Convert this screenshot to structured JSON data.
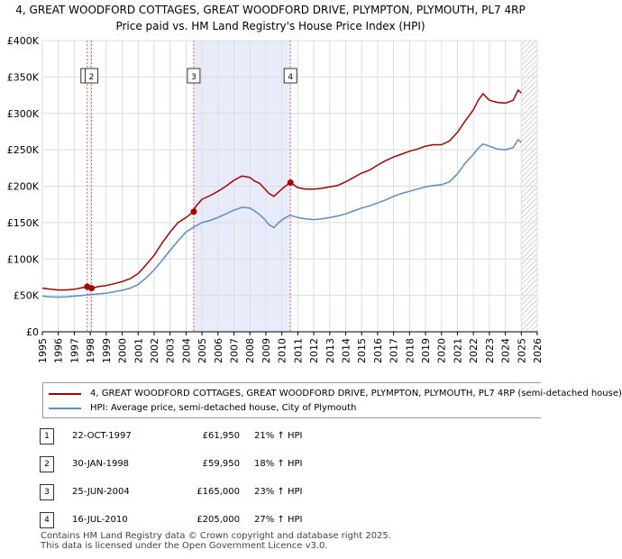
{
  "title_line1": "4, GREAT WOODFORD COTTAGES, GREAT WOODFORD DRIVE, PLYMPTON, PLYMOUTH, PL7 4RP",
  "title_line2": "Price paid vs. HM Land Registry's House Price Index (HPI)",
  "colors": {
    "property": "#aa0000",
    "hpi": "#5b8cc8",
    "shade": "#e8ecfa",
    "grid": "#dddddd",
    "vline": "#e06060",
    "hatch": "#aaaaaa"
  },
  "legend": {
    "property_label": "4, GREAT WOODFORD COTTAGES, GREAT WOODFORD DRIVE, PLYMPTON, PLYMOUTH, PL7 4RP (semi-detached house)",
    "hpi_label": "HPI: Average price, semi-detached house, City of Plymouth"
  },
  "sales": [
    {
      "num": "1",
      "date": "22-OCT-1997",
      "price": "£61,950",
      "hpi": "21% ↑ HPI"
    },
    {
      "num": "2",
      "date": "30-JAN-1998",
      "price": "£59,950",
      "hpi": "18% ↑ HPI"
    },
    {
      "num": "3",
      "date": "25-JUN-2004",
      "price": "£165,000",
      "hpi": "23% ↑ HPI"
    },
    {
      "num": "4",
      "date": "16-JUL-2010",
      "price": "£205,000",
      "hpi": "27% ↑ HPI"
    }
  ],
  "footer": {
    "line1": "Contains HM Land Registry data © Crown copyright and database right 2025.",
    "line2": "This data is licensed under the Open Government Licence v3.0."
  },
  "chart_data": {
    "type": "line",
    "title": "4, GREAT WOODFORD COTTAGES, GREAT WOODFORD DRIVE, PLYMPTON, PLYMOUTH, PL7 4RP — Price paid vs. HM Land Registry's House Price Index (HPI)",
    "xlim": [
      1995,
      2026
    ],
    "ylim": [
      0,
      400000
    ],
    "x_ticks": [
      "1995",
      "1996",
      "1997",
      "1998",
      "1999",
      "2000",
      "2001",
      "2002",
      "2003",
      "2004",
      "2005",
      "2006",
      "2007",
      "2008",
      "2009",
      "2010",
      "2011",
      "2012",
      "2013",
      "2014",
      "2015",
      "2016",
      "2017",
      "2018",
      "2019",
      "2020",
      "2021",
      "2022",
      "2023",
      "2024",
      "2025",
      "2026"
    ],
    "y_ticks": [
      {
        "value": 0,
        "label": "£0"
      },
      {
        "value": 50000,
        "label": "£50K"
      },
      {
        "value": 100000,
        "label": "£100K"
      },
      {
        "value": 150000,
        "label": "£150K"
      },
      {
        "value": 200000,
        "label": "£200K"
      },
      {
        "value": 250000,
        "label": "£250K"
      },
      {
        "value": 300000,
        "label": "£300K"
      },
      {
        "value": 350000,
        "label": "£350K"
      },
      {
        "value": 400000,
        "label": "£400K"
      }
    ],
    "shaded_range": [
      2004.48,
      2010.54
    ],
    "future_hatch_from": 2025.0,
    "markers": [
      {
        "label": "1",
        "x": 1997.81,
        "y": 61950
      },
      {
        "label": "2",
        "x": 1998.08,
        "y": 59950
      },
      {
        "label": "3",
        "x": 2004.48,
        "y": 165000
      },
      {
        "label": "4",
        "x": 2010.54,
        "y": 205000
      }
    ],
    "series": [
      {
        "name": "4, GREAT WOODFORD COTTAGES, GREAT WOODFORD DRIVE, PLYMPTON, PLYMOUTH, PL7 4RP (semi-detached house)",
        "color": "#aa0000",
        "x": [
          1995.0,
          1995.5,
          1996.0,
          1996.5,
          1997.0,
          1997.5,
          1997.81,
          1998.08,
          1998.5,
          1999.0,
          1999.5,
          2000.0,
          2000.5,
          2001.0,
          2001.5,
          2002.0,
          2002.5,
          2003.0,
          2003.5,
          2004.0,
          2004.48,
          2004.6,
          2005.0,
          2005.5,
          2006.0,
          2006.5,
          2007.0,
          2007.5,
          2008.0,
          2008.3,
          2008.6,
          2008.9,
          2009.2,
          2009.5,
          2009.8,
          2010.1,
          2010.54,
          2011.0,
          2011.5,
          2012.0,
          2012.5,
          2013.0,
          2013.5,
          2014.0,
          2014.5,
          2015.0,
          2015.5,
          2016.0,
          2016.5,
          2017.0,
          2017.5,
          2018.0,
          2018.5,
          2019.0,
          2019.5,
          2020.0,
          2020.5,
          2021.0,
          2021.5,
          2022.0,
          2022.3,
          2022.6,
          2023.0,
          2023.5,
          2024.0,
          2024.5,
          2024.8,
          2025.0
        ],
        "y": [
          60000,
          58500,
          57500,
          57500,
          58500,
          60500,
          61950,
          59950,
          62000,
          63500,
          66000,
          69000,
          73000,
          80000,
          92000,
          105000,
          122000,
          137000,
          150000,
          157000,
          165000,
          172000,
          182000,
          187000,
          193000,
          200000,
          208000,
          214000,
          212000,
          207000,
          204000,
          197000,
          190000,
          186000,
          192000,
          198000,
          205000,
          198000,
          196000,
          196000,
          197000,
          199000,
          201000,
          206000,
          212000,
          218000,
          222000,
          229000,
          235000,
          240000,
          244000,
          248000,
          251000,
          255000,
          257000,
          257000,
          262000,
          274000,
          290000,
          305000,
          318000,
          327000,
          318000,
          315000,
          314000,
          318000,
          332000,
          328000
        ]
      },
      {
        "name": "HPI: Average price, semi-detached house, City of Plymouth",
        "color": "#5b8cc8",
        "x": [
          1995.0,
          1995.5,
          1996.0,
          1996.5,
          1997.0,
          1997.5,
          1998.0,
          1998.5,
          1999.0,
          1999.5,
          2000.0,
          2000.5,
          2001.0,
          2001.5,
          2002.0,
          2002.5,
          2003.0,
          2003.5,
          2004.0,
          2004.5,
          2005.0,
          2005.5,
          2006.0,
          2006.5,
          2007.0,
          2007.5,
          2008.0,
          2008.3,
          2008.6,
          2008.9,
          2009.2,
          2009.5,
          2009.8,
          2010.1,
          2010.5,
          2011.0,
          2011.5,
          2012.0,
          2012.5,
          2013.0,
          2013.5,
          2014.0,
          2014.5,
          2015.0,
          2015.5,
          2016.0,
          2016.5,
          2017.0,
          2017.5,
          2018.0,
          2018.5,
          2019.0,
          2019.5,
          2020.0,
          2020.5,
          2021.0,
          2021.5,
          2022.0,
          2022.3,
          2022.6,
          2023.0,
          2023.5,
          2024.0,
          2024.5,
          2024.8,
          2025.0
        ],
        "y": [
          49000,
          48000,
          47500,
          48000,
          49000,
          50000,
          51000,
          52000,
          53000,
          55000,
          57000,
          60000,
          65000,
          74000,
          85000,
          98000,
          112000,
          125000,
          137000,
          144000,
          150000,
          153000,
          157000,
          162000,
          167000,
          171000,
          170000,
          166000,
          161000,
          155000,
          147000,
          143000,
          150000,
          155000,
          160000,
          157000,
          155000,
          154000,
          155000,
          157000,
          159000,
          162000,
          166000,
          170000,
          173000,
          177000,
          181000,
          186000,
          190000,
          193000,
          196000,
          199000,
          201000,
          202000,
          206000,
          217000,
          232000,
          244000,
          252000,
          258000,
          255000,
          251000,
          250000,
          253000,
          264000,
          260000
        ]
      }
    ]
  }
}
